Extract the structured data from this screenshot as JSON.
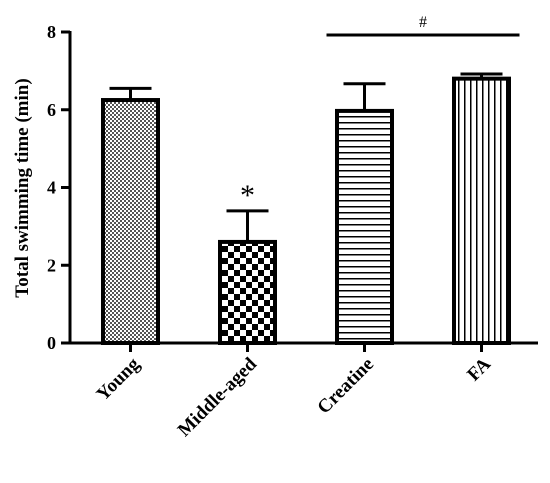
{
  "chart_data": {
    "type": "bar",
    "title": "",
    "xlabel": "",
    "ylabel": "Total swimming time (min)",
    "ylim": [
      0,
      8
    ],
    "yticks": [
      0,
      2,
      4,
      6,
      8
    ],
    "grid": false,
    "categories": [
      "Young",
      "Middle-aged",
      "Creatine",
      "FA"
    ],
    "values": [
      6.25,
      2.6,
      5.97,
      6.8
    ],
    "errors": [
      0.3,
      0.8,
      0.7,
      0.12
    ],
    "patterns": [
      "fine-crosshatch",
      "checkerboard",
      "horizontal-lines",
      "vertical-lines"
    ],
    "annotations": [
      {
        "text": "*",
        "category": "Middle-aged"
      },
      {
        "text": "#",
        "span": [
          "Creatine",
          "FA"
        ]
      }
    ]
  }
}
